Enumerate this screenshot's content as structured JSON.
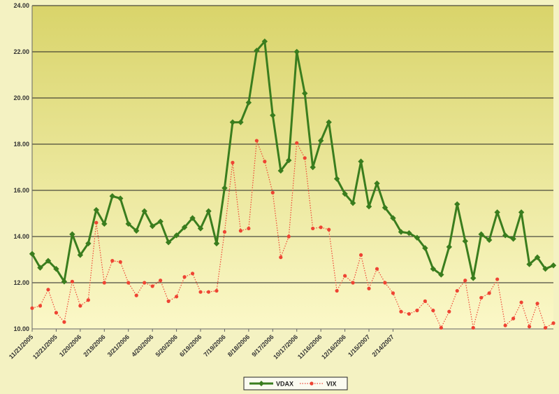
{
  "chart_data": {
    "type": "line",
    "ylim": [
      10,
      24
    ],
    "y_ticks": [
      "10.00",
      "12.00",
      "14.00",
      "16.00",
      "18.00",
      "20.00",
      "22.00",
      "24.00"
    ],
    "x_tick_labels": [
      "11/21/2005",
      "12/21/2005",
      "1/20/2006",
      "2/19/2006",
      "3/21/2006",
      "4/20/2006",
      "5/20/2006",
      "6/19/2006",
      "7/19/2006",
      "8/18/2006",
      "9/17/2006",
      "10/17/2006",
      "11/16/2006",
      "12/16/2006",
      "1/15/2007",
      "2/14/2007"
    ],
    "grid": true,
    "legend": "bottom-center",
    "colors": {
      "VDAX": "#3a7d1e",
      "VIX": "#ee4433",
      "plot_top": "#d9d46a",
      "plot_bottom": "#fbf8c8",
      "grid": "#222222"
    },
    "series": [
      {
        "name": "VDAX",
        "values": [
          13.25,
          12.65,
          12.95,
          12.6,
          12.05,
          14.1,
          13.2,
          13.7,
          15.15,
          14.55,
          15.75,
          15.65,
          14.55,
          14.25,
          15.1,
          14.45,
          14.65,
          13.75,
          14.05,
          14.4,
          14.8,
          14.35,
          15.1,
          13.7,
          16.1,
          18.95,
          18.95,
          19.8,
          22.05,
          22.45,
          19.25,
          16.85,
          17.3,
          22.0,
          20.2,
          17.0,
          18.15,
          18.95,
          16.5,
          15.85,
          15.45,
          17.25,
          15.3,
          16.3,
          15.25,
          14.8,
          14.2,
          14.15,
          13.95,
          13.5,
          12.6,
          12.35,
          13.55,
          15.4,
          13.8,
          12.2,
          14.1,
          13.85,
          15.05,
          14.05,
          13.9,
          15.05,
          12.8,
          13.1,
          12.6,
          12.75
        ]
      },
      {
        "name": "VIX",
        "values": [
          10.9,
          11.0,
          11.7,
          10.7,
          10.3,
          12.05,
          11.0,
          11.25,
          14.6,
          12.0,
          12.95,
          12.9,
          12.0,
          11.45,
          12.0,
          11.85,
          12.1,
          11.2,
          11.4,
          12.25,
          12.4,
          11.6,
          11.6,
          11.65,
          14.2,
          17.2,
          14.25,
          14.35,
          18.15,
          17.25,
          15.9,
          13.1,
          14.0,
          18.05,
          17.4,
          14.35,
          14.4,
          14.3,
          11.65,
          12.3,
          12.0,
          13.2,
          11.75,
          12.6,
          12.0,
          11.55,
          10.75,
          10.65,
          10.8,
          11.2,
          10.8,
          10.05,
          10.75,
          11.65,
          12.1,
          10.05,
          11.35,
          11.55,
          12.15,
          10.15,
          10.45,
          11.15,
          10.1,
          11.1,
          10.05,
          10.25
        ]
      }
    ]
  }
}
